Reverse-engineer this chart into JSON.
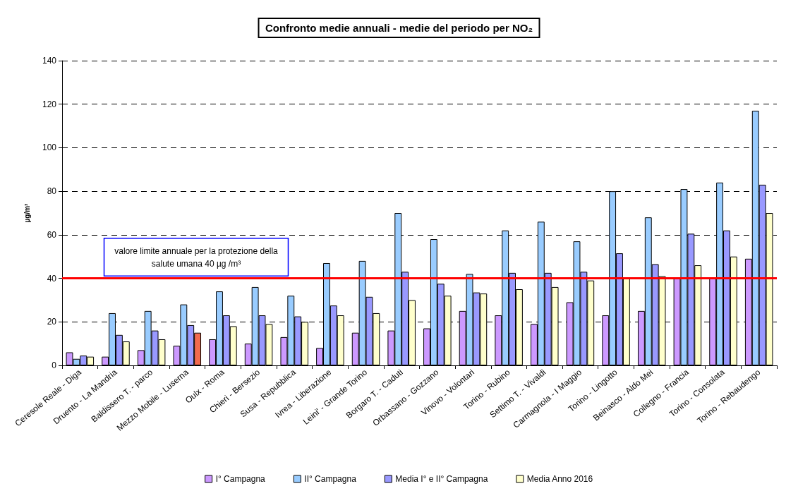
{
  "chart_data": {
    "type": "bar",
    "title": "Confronto medie annuali - medie del periodo per NO₂",
    "ylabel": "µg/m³",
    "categories": [
      "Ceresole Reale - Diga",
      "Druento - La Mandria",
      "Baldissero T. - parco",
      "Mezzo Mobile - Luserna",
      "Oulx - Roma",
      "Chieri - Bersezio",
      "Susa - Repubblica",
      "Ivrea - Liberazione",
      "Leini' - Grande Torino",
      "Borgaro T. - Caduti",
      "Orbassano - Gozzano",
      "Vinovo - Volontari",
      "Torino - Rubino",
      "Settimo T. - Vivaldi",
      "Carmagnola - I Maggio",
      "Torino - Lingotto",
      "Beinasco - Aldo Mei",
      "Collegno - Francia",
      "Torino - Consolata",
      "Torino - Rebaudengo"
    ],
    "series": [
      {
        "name": "I° Campagna",
        "color": "#cc99ff",
        "values": [
          6,
          4,
          7,
          9,
          12,
          10,
          13,
          8,
          15,
          16,
          17,
          25,
          23,
          19,
          29,
          23,
          25,
          40,
          40,
          49
        ]
      },
      {
        "name": "II° Campagna",
        "color": "#99ccff",
        "values": [
          3,
          24,
          25,
          28,
          34,
          36,
          32,
          47,
          48,
          70,
          58,
          42,
          62,
          66,
          57,
          80,
          68,
          81,
          84,
          117
        ]
      },
      {
        "name": "Media I° e II° Campagna",
        "color": "#9999ff",
        "values": [
          4.5,
          14,
          16,
          18.5,
          23,
          23,
          22.5,
          27.5,
          31.5,
          43,
          37.5,
          33.5,
          42.5,
          42.5,
          43,
          51.5,
          46.5,
          60.5,
          62,
          83
        ]
      },
      {
        "name": "Media Anno 2016",
        "color": "#ffffcc",
        "colors": [
          "#ffffcc",
          "#ffffcc",
          "#ffffcc",
          "#f26b4f",
          "#ffffcc",
          "#ffffcc",
          "#ffffcc",
          "#ffffcc",
          "#ffffcc",
          "#ffffcc",
          "#ffffcc",
          "#ffffcc",
          "#ffffcc",
          "#ffffcc",
          "#ffffcc",
          "#ffffcc",
          "#ffffcc",
          "#ffffcc",
          "#ffffcc",
          "#ffffcc"
        ],
        "values": [
          4,
          11,
          12,
          15,
          18,
          19,
          20,
          23,
          24,
          30,
          32,
          33,
          35,
          36,
          39,
          40,
          41,
          46,
          50,
          70
        ]
      }
    ],
    "ylim": [
      0,
      140
    ],
    "yticks": [
      0,
      20,
      40,
      60,
      80,
      100,
      120,
      140
    ],
    "grid": "y",
    "legend": "bottom",
    "ref_lines": [
      {
        "axis": "y",
        "value": 40,
        "label": "valore limite annuale per la protezione della salute umana 40 µg /m³",
        "color": "#ff0000",
        "line_style": "solid"
      }
    ]
  }
}
